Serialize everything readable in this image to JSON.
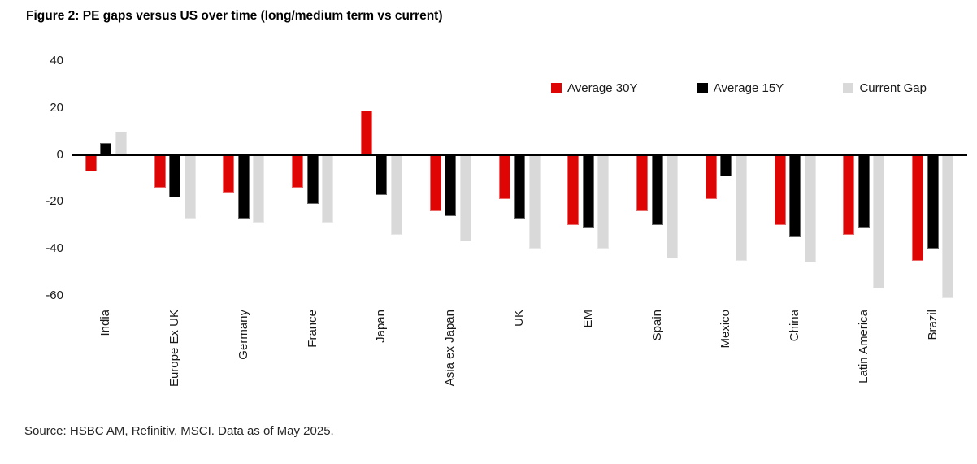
{
  "figure": {
    "title": "Figure 2: PE gaps versus US over time (long/medium term vs current)",
    "source": "Source: HSBC AM, Refinitiv, MSCI. Data as of May 2025."
  },
  "colors": {
    "average_30y": "#e00505",
    "average_15y": "#000000",
    "current_gap": "#d9d9d9",
    "axis_line": "#000000"
  },
  "chart_data": {
    "type": "bar",
    "title": "Figure 2: PE gaps versus US over time (long/medium term vs current)",
    "categories": [
      "India",
      "Europe Ex UK",
      "Germany",
      "France",
      "Japan",
      "Asia ex Japan",
      "UK",
      "EM",
      "Spain",
      "Mexico",
      "China",
      "Latin America",
      "Brazil"
    ],
    "series": [
      {
        "name": "Average 30Y",
        "color_key": "average_30y",
        "values": [
          -7,
          -14,
          -16,
          -14,
          19,
          -24,
          -19,
          -30,
          -24,
          -19,
          -30,
          -34,
          -45
        ]
      },
      {
        "name": "Average 15Y",
        "color_key": "average_15y",
        "values": [
          5,
          -18,
          -27,
          -21,
          -17,
          -26,
          -27,
          -31,
          -30,
          -9,
          -35,
          -31,
          -40
        ]
      },
      {
        "name": "Current Gap",
        "color_key": "current_gap",
        "values": [
          10,
          -27,
          -29,
          -29,
          -34,
          -37,
          -40,
          -40,
          -44,
          -45,
          -46,
          -57,
          -61
        ]
      }
    ],
    "y_ticks": [
      40,
      20,
      0,
      -20,
      -40,
      -60
    ],
    "ylim": [
      -65,
      45
    ],
    "xlabel": "",
    "ylabel": "",
    "grid": false,
    "legend_position": "top-right"
  }
}
